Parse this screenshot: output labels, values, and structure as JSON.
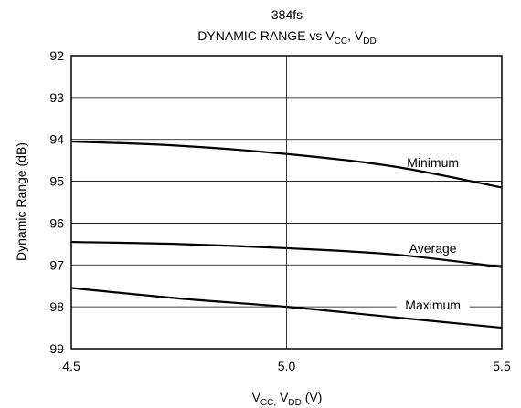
{
  "chart_data": {
    "type": "line",
    "title_line1": "384fs",
    "title_line2": {
      "main": "DYNAMIC RANGE vs V",
      "sub1": "CC",
      "sep": ", V",
      "sub2": "DD"
    },
    "xlabel": {
      "v1": "V",
      "sub1": "CC,",
      "v2": " V",
      "sub2": "DD",
      "unit": " (V)"
    },
    "ylabel": "Dynamic Range (dB)",
    "xlim": [
      4.5,
      5.5
    ],
    "ylim": [
      92,
      99
    ],
    "y_inverted": true,
    "x_ticks": [
      "4.5",
      "5.0",
      "5.5"
    ],
    "x_tick_values": [
      4.5,
      5.0,
      5.5
    ],
    "y_ticks": [
      "92",
      "93",
      "94",
      "95",
      "96",
      "97",
      "98",
      "99"
    ],
    "y_tick_values": [
      92,
      93,
      94,
      95,
      96,
      97,
      98,
      99
    ],
    "grid": true,
    "series": [
      {
        "name": "Minimum",
        "x": [
          4.5,
          4.75,
          5.0,
          5.25,
          5.5
        ],
        "values": [
          94.05,
          94.15,
          94.35,
          94.65,
          95.15
        ]
      },
      {
        "name": "Average",
        "x": [
          4.5,
          4.75,
          5.0,
          5.25,
          5.5
        ],
        "values": [
          96.45,
          96.5,
          96.6,
          96.75,
          97.05
        ]
      },
      {
        "name": "Maximum",
        "x": [
          4.5,
          4.75,
          5.0,
          5.25,
          5.5
        ],
        "values": [
          97.55,
          97.8,
          98.0,
          98.25,
          98.5
        ]
      }
    ]
  }
}
